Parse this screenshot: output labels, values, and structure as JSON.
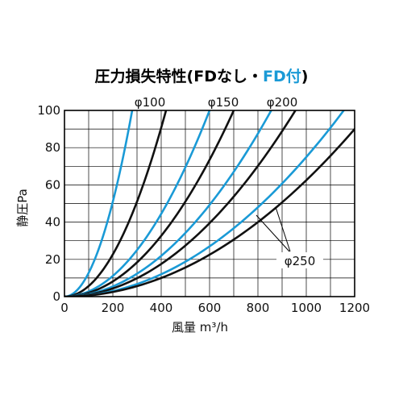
{
  "chart_data": {
    "type": "line",
    "title_black": "圧力損失特性(FDなし・",
    "title_blue": "FD付",
    "title_end": ")",
    "xlabel": "風量 m³/h",
    "ylabel": "静圧Pa",
    "xlim": [
      0,
      1200
    ],
    "ylim": [
      0,
      100
    ],
    "x_ticks": [
      0,
      200,
      400,
      600,
      800,
      1000,
      1200
    ],
    "y_ticks": [
      0,
      20,
      40,
      60,
      80,
      100
    ],
    "x_grid_step": 100,
    "y_grid_step": 10,
    "grid": true,
    "colors": {
      "without_fd": "#111111",
      "with_fd": "#1a9ad6",
      "grid": "#000000"
    },
    "series": [
      {
        "label": "φ100",
        "with_fd": true,
        "x_at_100": 280
      },
      {
        "label": "φ100",
        "with_fd": false,
        "x_at_100": 420
      },
      {
        "label": "φ150",
        "with_fd": true,
        "x_at_100": 600
      },
      {
        "label": "φ150",
        "with_fd": false,
        "x_at_100": 700
      },
      {
        "label": "φ200",
        "with_fd": true,
        "x_at_100": 855
      },
      {
        "label": "φ200",
        "with_fd": false,
        "x_at_100": 955
      },
      {
        "label": "φ250",
        "with_fd": true,
        "x_at_100": 1155
      },
      {
        "label": "φ250",
        "with_fd": false,
        "x_at_100": 1265
      }
    ],
    "annotations": [
      "φ100",
      "φ150",
      "φ200",
      "φ250"
    ]
  }
}
